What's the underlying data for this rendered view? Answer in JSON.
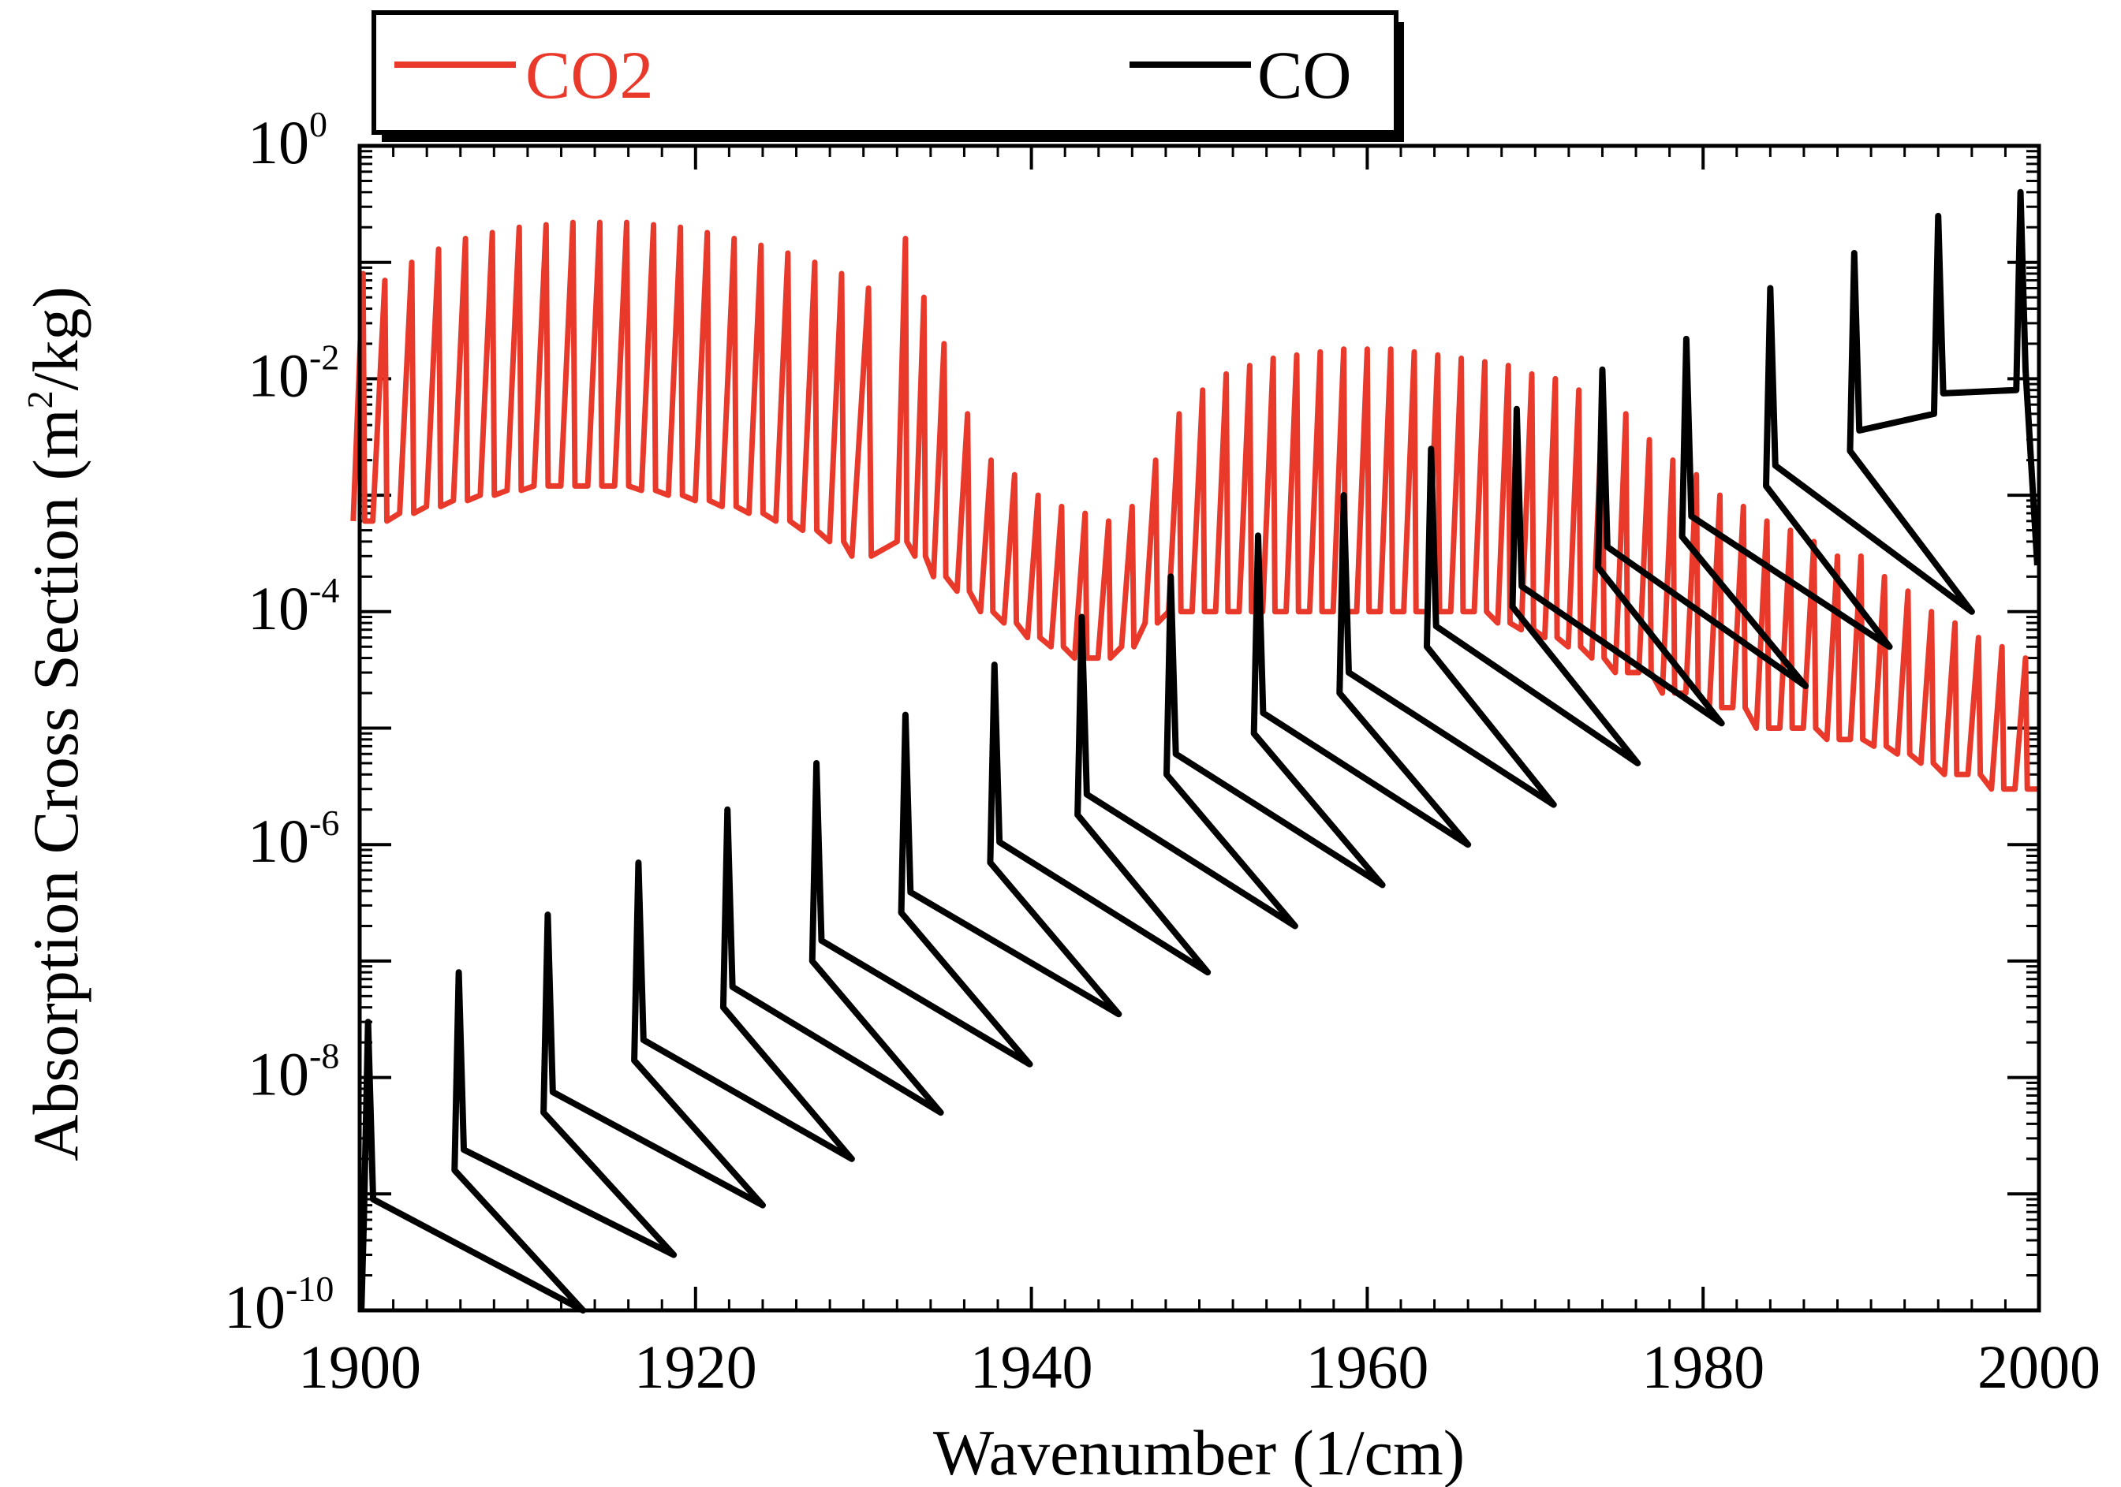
{
  "chart_data": {
    "type": "line",
    "title": "",
    "xlabel": "Wavenumber (1/cm)",
    "ylabel": {
      "prefix": "Absorption Cross Section (m",
      "superscript": "2",
      "suffix": "/kg)"
    },
    "xlim": [
      1900,
      2000
    ],
    "ylim": [
      1e-10,
      1
    ],
    "yscale": "log",
    "x_ticks": [
      "1900",
      "1920",
      "1940",
      "1960",
      "1980",
      "2000"
    ],
    "y_ticks": [
      {
        "base": "10",
        "exp": "0"
      },
      {
        "base": "10",
        "exp": "-2"
      },
      {
        "base": "10",
        "exp": "-4"
      },
      {
        "base": "10",
        "exp": "-6"
      },
      {
        "base": "10",
        "exp": "-8"
      },
      {
        "base": "10",
        "exp": "-10"
      }
    ],
    "legend": {
      "placement": "top",
      "entries": [
        {
          "label": "CO2",
          "color": "#e8392b"
        },
        {
          "label": "CO",
          "color": "#000000"
        }
      ]
    },
    "series": [
      {
        "name": "CO2",
        "color": "#e8392b",
        "x": [
          1900.2,
          1901.5,
          1903.1,
          1904.7,
          1906.3,
          1907.9,
          1909.5,
          1911.1,
          1912.7,
          1914.3,
          1915.9,
          1917.5,
          1919.1,
          1920.7,
          1922.3,
          1923.9,
          1925.5,
          1927.1,
          1928.7,
          1930.3,
          1932.5,
          1933.6,
          1934.8,
          1936.2,
          1937.6,
          1939.0,
          1940.4,
          1941.8,
          1943.2,
          1944.6,
          1946.0,
          1947.4,
          1948.8,
          1950.2,
          1951.6,
          1953.0,
          1954.4,
          1955.8,
          1957.2,
          1958.6,
          1960.0,
          1961.4,
          1962.8,
          1964.2,
          1965.6,
          1967.0,
          1968.4,
          1969.8,
          1971.2,
          1972.6,
          1974.0,
          1975.4,
          1976.8,
          1978.2,
          1979.6,
          1981.0,
          1982.4,
          1983.8,
          1985.2,
          1986.6,
          1988.0,
          1989.4,
          1990.8,
          1992.2,
          1993.6,
          1995.0,
          1996.4,
          1997.8,
          1999.2
        ],
        "peaks": [
          0.08,
          0.07,
          0.1,
          0.13,
          0.16,
          0.18,
          0.2,
          0.21,
          0.22,
          0.22,
          0.22,
          0.21,
          0.2,
          0.18,
          0.16,
          0.14,
          0.12,
          0.1,
          0.08,
          0.06,
          0.16,
          0.05,
          0.02,
          0.005,
          0.002,
          0.0015,
          0.001,
          0.0008,
          0.0007,
          0.0006,
          0.0008,
          0.002,
          0.005,
          0.008,
          0.011,
          0.013,
          0.015,
          0.016,
          0.017,
          0.018,
          0.018,
          0.018,
          0.017,
          0.016,
          0.015,
          0.014,
          0.013,
          0.011,
          0.01,
          0.008,
          0.006,
          0.005,
          0.003,
          0.002,
          0.0015,
          0.001,
          0.0008,
          0.0006,
          0.0005,
          0.0004,
          0.0003,
          0.0003,
          0.0002,
          0.00015,
          0.0001,
          8e-05,
          6e-05,
          5e-05,
          4e-05
        ],
        "valleys": [
          0.0006,
          0.0006,
          0.0007,
          0.0008,
          0.0009,
          0.001,
          0.0011,
          0.0012,
          0.0012,
          0.0012,
          0.0012,
          0.0011,
          0.001,
          0.0009,
          0.0008,
          0.0007,
          0.0006,
          0.0005,
          0.0004,
          0.0003,
          0.0004,
          0.0003,
          0.0002,
          0.00015,
          0.0001,
          8e-05,
          6e-05,
          5e-05,
          4e-05,
          4e-05,
          5e-05,
          8e-05,
          0.0001,
          0.0001,
          0.0001,
          0.0001,
          0.0001,
          0.0001,
          0.0001,
          0.0001,
          0.0001,
          0.0001,
          0.0001,
          0.0001,
          0.0001,
          0.0001,
          8e-05,
          7e-05,
          6e-05,
          5e-05,
          4e-05,
          3e-05,
          3e-05,
          2e-05,
          2e-05,
          1.5e-05,
          1.5e-05,
          1e-05,
          1e-05,
          1e-05,
          8e-06,
          8e-06,
          7e-06,
          6e-06,
          5e-06,
          4e-06,
          4e-06,
          3e-06,
          3e-06
        ]
      },
      {
        "name": "CO",
        "color": "#000000",
        "x": [
          1900.5,
          1905.9,
          1911.2,
          1916.6,
          1921.9,
          1927.2,
          1932.5,
          1937.8,
          1943.0,
          1948.3,
          1953.5,
          1958.6,
          1963.8,
          1968.9,
          1974.0,
          1979.0,
          1984.0,
          1989.0,
          1994.0,
          1998.9
        ],
        "peaks": [
          3e-08,
          8e-08,
          2.5e-07,
          7e-07,
          2e-06,
          5e-06,
          1.3e-05,
          3.5e-05,
          9e-05,
          0.0002,
          0.00045,
          0.001,
          0.0025,
          0.0055,
          0.012,
          0.022,
          0.06,
          0.12,
          0.25,
          0.4
        ],
        "minima_x": [
          1913.3,
          1918.7,
          1924.0,
          1929.3,
          1934.6,
          1939.9,
          1945.2,
          1950.5,
          1955.7,
          1960.9,
          1966.0,
          1971.1,
          1976.1,
          1981.1,
          1986.1,
          1991.1,
          1996.0
        ],
        "minima": [
          1e-10,
          3e-10,
          8e-10,
          2e-09,
          5e-09,
          1.3e-08,
          3.5e-08,
          8e-08,
          2e-07,
          4.5e-07,
          1e-06,
          2.2e-06,
          5e-06,
          1.1e-05,
          2.3e-05,
          5e-05,
          0.0001
        ],
        "end_value": 0.00025
      }
    ]
  }
}
